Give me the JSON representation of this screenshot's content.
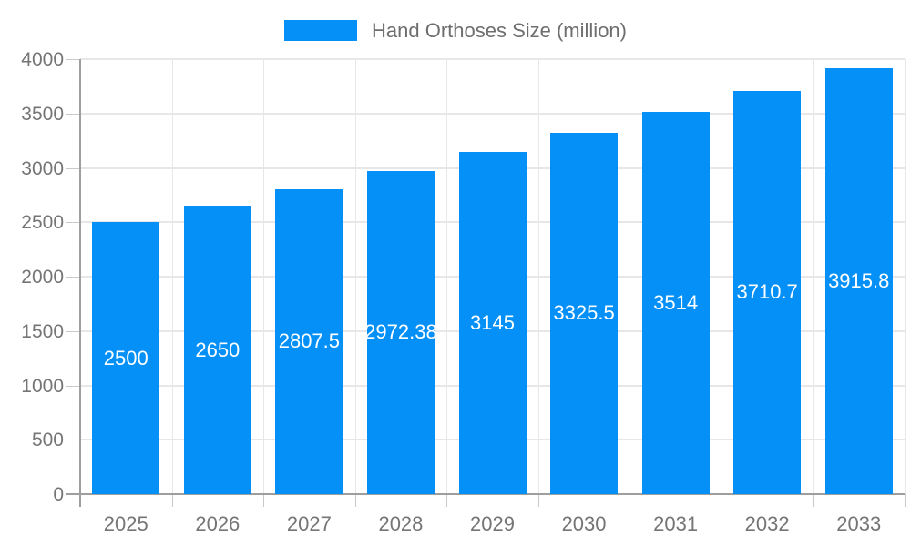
{
  "chart_data": {
    "type": "bar",
    "title": "Hand Orthoses Size (million)",
    "legend": {
      "label": "Hand Orthoses Size (million)",
      "position": "top-center"
    },
    "categories": [
      "2025",
      "2026",
      "2027",
      "2028",
      "2029",
      "2030",
      "2031",
      "2032",
      "2033"
    ],
    "series": [
      {
        "name": "Hand Orthoses Size (million)",
        "values": [
          2500,
          2650,
          2807.5,
          2972.38,
          3145,
          3325.5,
          3514,
          3710.7,
          3915.8
        ],
        "value_labels": [
          "2500",
          "2650",
          "2807.5",
          "2972.38",
          "3145",
          "3325.5",
          "3514",
          "3710.7",
          "3915.8"
        ]
      }
    ],
    "xlabel": "",
    "ylabel": "",
    "ylim": [
      0,
      4000
    ],
    "yticks": [
      0,
      500,
      1000,
      1500,
      2000,
      2500,
      3000,
      3500,
      4000
    ],
    "grid": true,
    "colors": {
      "bar": "#0590f8",
      "value_label_text": "#ffffff",
      "axis_text": "#757575",
      "legend_text": "#6e6e6e",
      "gridline": "#e7e7e7",
      "axis_line": "#9e9e9e",
      "tick": "#c9c9c9",
      "background": "#ffffff"
    }
  }
}
